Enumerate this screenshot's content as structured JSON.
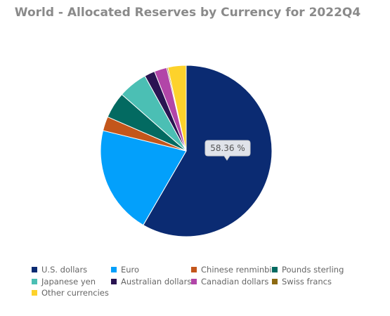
{
  "chart_data": {
    "type": "pie",
    "title": "World - Allocated Reserves by Currency for 2022Q4",
    "categories": [
      "U.S. dollars",
      "Euro",
      "Chinese renminbi",
      "Pounds sterling",
      "Japanese yen",
      "Australian dollars",
      "Canadian dollars",
      "Swiss francs",
      "Other currencies"
    ],
    "values": [
      58.36,
      20.47,
      2.69,
      4.95,
      5.51,
      1.97,
      2.38,
      0.23,
      3.44
    ],
    "value_labels": [
      "58.36 %",
      null,
      null,
      null,
      null,
      null,
      null,
      null,
      null
    ],
    "colors": [
      "#0b2b72",
      "#03a0fb",
      "#c3561b",
      "#036a61",
      "#4bbfb4",
      "#2a1452",
      "#b245a8",
      "#8d6a12",
      "#fdd22b"
    ]
  }
}
